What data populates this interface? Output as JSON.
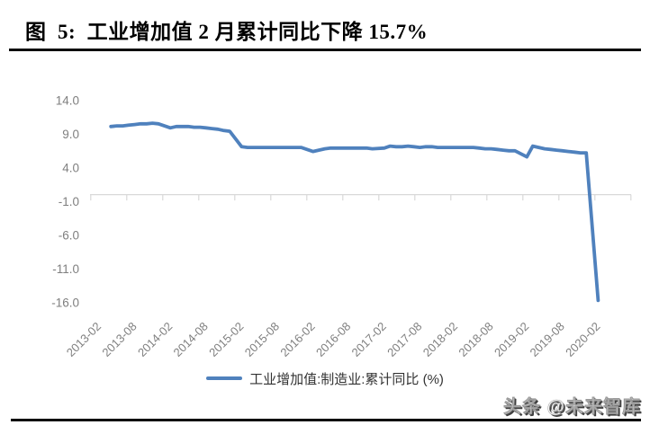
{
  "page": {
    "title": "图  5:  工业增加值 2 月累计同比下降 15.7%",
    "watermark": "头条 @未来智库"
  },
  "legend": {
    "label": "工业增加值:制造业:累计同比 (%)"
  },
  "colors": {
    "series_line": "#4F81BD",
    "axis": "#D9D9D9",
    "tick_label": "#7F7F7F",
    "legend_text": "#333333",
    "title_text": "#000000"
  },
  "chart_data": {
    "type": "line",
    "title": "工业增加值 2 月累计同比下降 15.7%",
    "ylabel": "",
    "xlabel": "",
    "ylim": [
      -16.5,
      14.5
    ],
    "grid": "none",
    "legend_position": "bottom",
    "y_ticks": [
      "14.0",
      "9.0",
      "4.0",
      "-1.0",
      "-6.0",
      "-11.0",
      "-16.0"
    ],
    "y_tick_values": [
      14,
      9,
      4,
      -1,
      -6,
      -11,
      -16
    ],
    "x_tick_labels": [
      "2013-02",
      "2013-08",
      "2014-02",
      "2014-08",
      "2015-02",
      "2015-08",
      "2016-02",
      "2016-08",
      "2017-02",
      "2017-08",
      "2018-02",
      "2018-08",
      "2019-02",
      "2019-08",
      "2020-02"
    ],
    "series": [
      {
        "name": "工业增加值:制造业:累计同比 (%)",
        "x": [
          "2013-04",
          "2013-05",
          "2013-06",
          "2013-07",
          "2013-08",
          "2013-09",
          "2013-10",
          "2013-11",
          "2013-12",
          "2014-02",
          "2014-03",
          "2014-04",
          "2014-05",
          "2014-06",
          "2014-07",
          "2014-08",
          "2014-09",
          "2014-10",
          "2014-11",
          "2014-12",
          "2015-02",
          "2015-03",
          "2015-04",
          "2015-05",
          "2015-06",
          "2015-07",
          "2015-08",
          "2015-09",
          "2015-10",
          "2015-11",
          "2015-12",
          "2016-02",
          "2016-03",
          "2016-04",
          "2016-05",
          "2016-06",
          "2016-07",
          "2016-08",
          "2016-09",
          "2016-10",
          "2016-11",
          "2016-12",
          "2017-02",
          "2017-03",
          "2017-04",
          "2017-05",
          "2017-06",
          "2017-07",
          "2017-08",
          "2017-09",
          "2017-10",
          "2017-11",
          "2017-12",
          "2018-02",
          "2018-03",
          "2018-04",
          "2018-05",
          "2018-06",
          "2018-07",
          "2018-08",
          "2018-09",
          "2018-10",
          "2018-11",
          "2018-12",
          "2019-02",
          "2019-03",
          "2019-04",
          "2019-05",
          "2019-06",
          "2019-07",
          "2019-08",
          "2019-09",
          "2019-10",
          "2019-11",
          "2019-12",
          "2020-02"
        ],
        "values": [
          10.1,
          10.2,
          10.2,
          10.3,
          10.4,
          10.5,
          10.5,
          10.6,
          10.5,
          9.9,
          10.1,
          10.1,
          10.1,
          10.0,
          10.0,
          9.9,
          9.8,
          9.7,
          9.5,
          9.4,
          7.1,
          7.0,
          7.0,
          7.0,
          7.0,
          7.0,
          7.0,
          7.0,
          7.0,
          7.0,
          7.0,
          6.4,
          6.6,
          6.8,
          6.9,
          6.9,
          6.9,
          6.9,
          6.9,
          6.9,
          6.9,
          6.8,
          6.9,
          7.2,
          7.1,
          7.1,
          7.2,
          7.1,
          7.0,
          7.1,
          7.1,
          7.0,
          7.0,
          7.0,
          7.0,
          7.0,
          7.0,
          6.9,
          6.8,
          6.8,
          6.7,
          6.6,
          6.5,
          6.5,
          5.6,
          7.2,
          7.0,
          6.8,
          6.7,
          6.6,
          6.5,
          6.4,
          6.3,
          6.2,
          6.2,
          -15.7
        ]
      }
    ]
  }
}
